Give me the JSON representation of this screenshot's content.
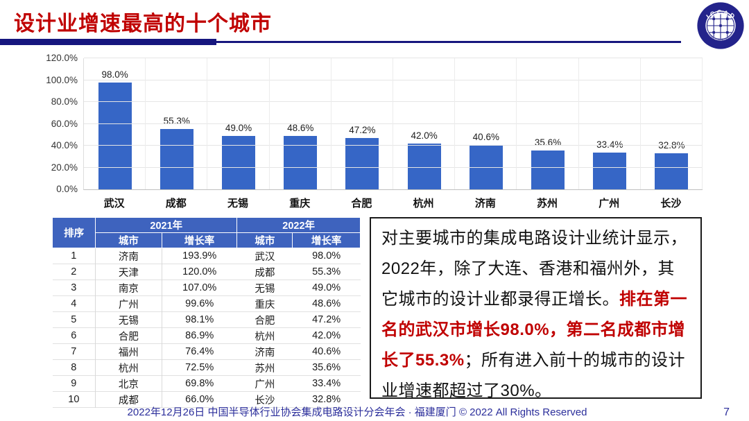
{
  "title": "设计业增速最高的十个城市",
  "logo": {
    "arc_text": "I C C A D",
    "ring_text": "中国半导体行业协会集成电路设计分会"
  },
  "chart_data": {
    "type": "bar",
    "title": "",
    "xlabel": "",
    "ylabel": "",
    "categories": [
      "武汉",
      "成都",
      "无锡",
      "重庆",
      "合肥",
      "杭州",
      "济南",
      "苏州",
      "广州",
      "长沙"
    ],
    "values": [
      98.0,
      55.3,
      49.0,
      48.6,
      47.2,
      42.0,
      40.6,
      35.6,
      33.4,
      32.8
    ],
    "value_labels": [
      "98.0%",
      "55.3%",
      "49.0%",
      "48.6%",
      "47.2%",
      "42.0%",
      "40.6%",
      "35.6%",
      "33.4%",
      "32.8%"
    ],
    "ylim": [
      0,
      120
    ],
    "ytick_step": 20,
    "ytick_labels": [
      "0.0%",
      "20.0%",
      "40.0%",
      "60.0%",
      "80.0%",
      "100.0%",
      "120.0%"
    ],
    "bar_color": "#3666C6",
    "grid": true,
    "legend_position": "none"
  },
  "table": {
    "rank_header": "排序",
    "groups": [
      {
        "label": "2021年"
      },
      {
        "label": "2022年"
      }
    ],
    "sub_headers": [
      "城市",
      "增长率",
      "城市",
      "增长率"
    ],
    "header_bg": "#3E63BE",
    "rows": [
      [
        "1",
        "济南",
        "193.9%",
        "武汉",
        "98.0%"
      ],
      [
        "2",
        "天津",
        "120.0%",
        "成都",
        "55.3%"
      ],
      [
        "3",
        "南京",
        "107.0%",
        "无锡",
        "49.0%"
      ],
      [
        "4",
        "广州",
        "99.6%",
        "重庆",
        "48.6%"
      ],
      [
        "5",
        "无锡",
        "98.1%",
        "合肥",
        "47.2%"
      ],
      [
        "6",
        "合肥",
        "86.9%",
        "杭州",
        "42.0%"
      ],
      [
        "7",
        "福州",
        "76.4%",
        "济南",
        "40.6%"
      ],
      [
        "8",
        "杭州",
        "72.5%",
        "苏州",
        "35.6%"
      ],
      [
        "9",
        "北京",
        "69.8%",
        "广州",
        "33.4%"
      ],
      [
        "10",
        "成都",
        "66.0%",
        "长沙",
        "32.8%"
      ]
    ]
  },
  "note": {
    "black1": "对主要城市的集成电路设计业统计显示，2022年，除了大连、香港和福州外，其它城市的设计业都录得正增长。",
    "red": "排在第一名的武汉市增长98.0%，第二名成都市增长了55.3%",
    "black2": "；所有进入前十的城市的设计业增速都超过了30%。"
  },
  "footer": {
    "text": "2022年12月26日 中国半导体行业协会集成电路设计分会年会 · 福建厦门 © 2022 All Rights Reserved",
    "page": "7"
  }
}
